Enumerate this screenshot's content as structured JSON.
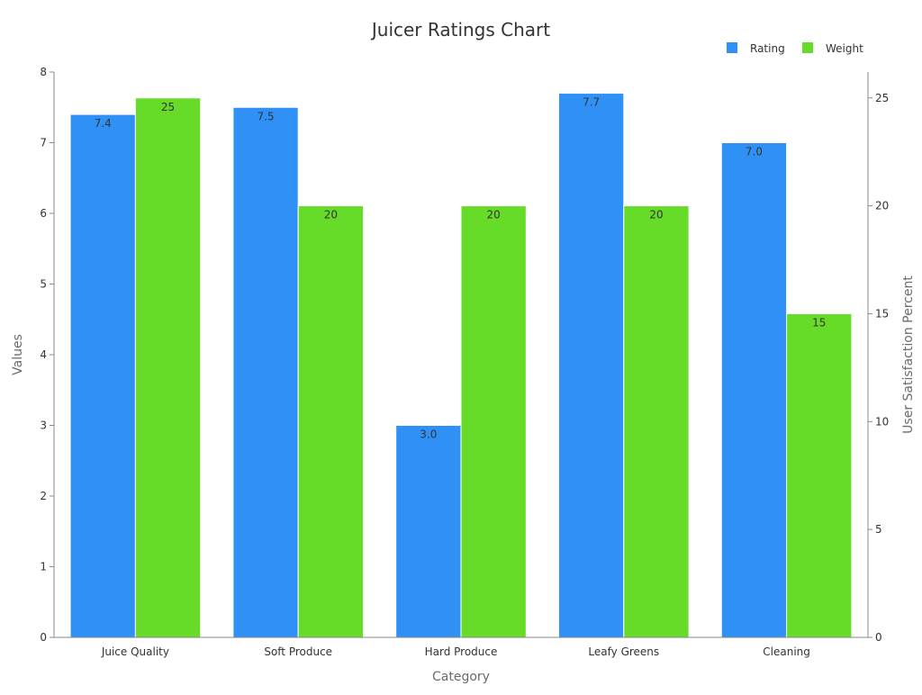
{
  "chart_data": {
    "type": "bar",
    "title": "Juicer Ratings Chart",
    "xlabel": "Category",
    "ylabel": "Values",
    "y2label": "User Satisfaction Percent",
    "categories": [
      "Juice Quality",
      "Soft Produce",
      "Hard Produce",
      "Leafy Greens",
      "Cleaning"
    ],
    "series": [
      {
        "name": "Rating",
        "axis": "left",
        "color": "#2f91f5",
        "values": [
          7.4,
          7.5,
          3.0,
          7.7,
          7.0
        ],
        "labels": [
          "7.4",
          "7.5",
          "3.0",
          "7.7",
          "7.0"
        ]
      },
      {
        "name": "Weight",
        "axis": "right",
        "color": "#66db28",
        "values": [
          25,
          20,
          20,
          20,
          15
        ],
        "labels": [
          "25",
          "20",
          "20",
          "20",
          "15"
        ]
      }
    ],
    "ylim": [
      0,
      8
    ],
    "yticks": [
      "0",
      "1",
      "2",
      "3",
      "4",
      "5",
      "6",
      "7",
      "8"
    ],
    "y2lim": [
      0,
      26.2
    ],
    "y2ticks": [
      "0",
      "5",
      "10",
      "15",
      "20",
      "25"
    ],
    "grid": false,
    "legend": "top-right"
  }
}
